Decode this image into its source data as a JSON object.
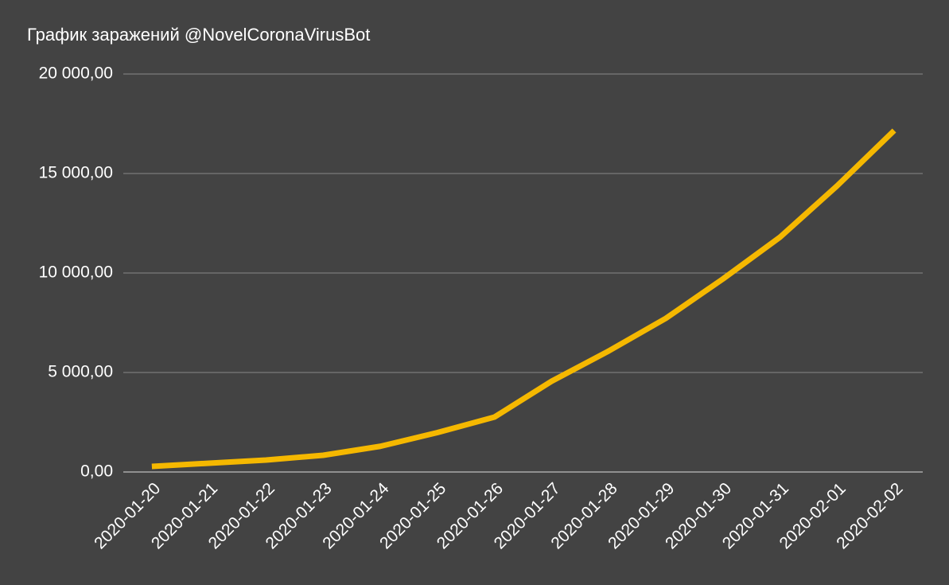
{
  "chart_data": {
    "type": "line",
    "title": "График заражений @NovelCoronaVirusBot",
    "categories": [
      "2020-01-20",
      "2020-01-21",
      "2020-01-22",
      "2020-01-23",
      "2020-01-24",
      "2020-01-25",
      "2020-01-26",
      "2020-01-27",
      "2020-01-28",
      "2020-01-29",
      "2020-01-30",
      "2020-01-31",
      "2020-02-01",
      "2020-02-02"
    ],
    "values": [
      280,
      440,
      600,
      840,
      1290,
      1980,
      2760,
      4560,
      6080,
      7720,
      9700,
      11800,
      14380,
      17160
    ],
    "color": "#f5b800",
    "ylim": [
      0,
      20000
    ],
    "yticks": [
      {
        "value": 0,
        "label": "0,00"
      },
      {
        "value": 5000,
        "label": "5 000,00"
      },
      {
        "value": 10000,
        "label": "10 000,00"
      },
      {
        "value": 15000,
        "label": "15 000,00"
      },
      {
        "value": 20000,
        "label": "20 000,00"
      }
    ],
    "grid": true
  }
}
